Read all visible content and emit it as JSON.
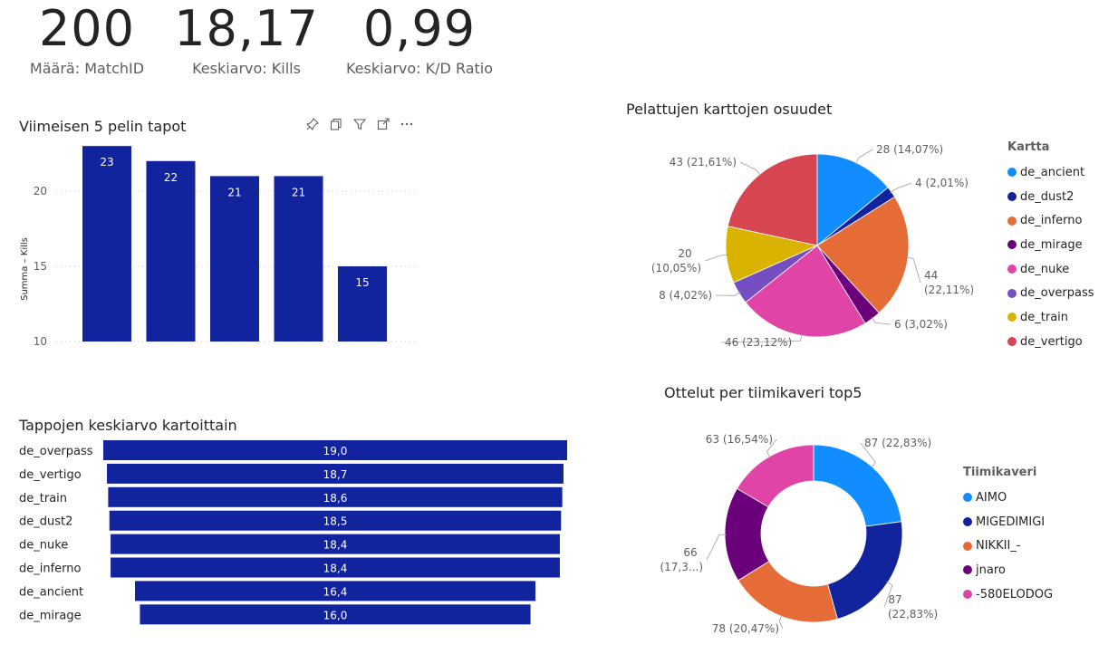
{
  "kpis": [
    {
      "value": "200",
      "label": "Määrä: MatchID"
    },
    {
      "value": "18,17",
      "label": "Keskiarvo: Kills"
    },
    {
      "value": "0,99",
      "label": "Keskiarvo: K/D Ratio"
    }
  ],
  "toolbar_icons": [
    "pin-icon",
    "copy-icon",
    "filter-icon",
    "expand-icon",
    "more-options-icon"
  ],
  "chart_data": [
    {
      "type": "bar",
      "title": "Viimeisen 5 pelin tapot",
      "ylabel": "Summa – Kills",
      "xlabel": "",
      "categories": [
        "",
        "",
        "",
        "",
        ""
      ],
      "values": [
        23,
        22,
        21,
        21,
        15
      ],
      "labels": [
        "23",
        "22",
        "21",
        "21",
        "15"
      ],
      "ylim": [
        10,
        23
      ],
      "yticks": [
        10,
        15,
        20
      ],
      "color": "#12239E",
      "grid": true
    },
    {
      "type": "bar",
      "orientation": "horizontal-funnel",
      "title": "Tappojen keskiarvo kartoittain",
      "categories": [
        "de_overpass",
        "de_vertigo",
        "de_train",
        "de_dust2",
        "de_nuke",
        "de_inferno",
        "de_ancient",
        "de_mirage"
      ],
      "values": [
        19.0,
        18.7,
        18.6,
        18.5,
        18.4,
        18.4,
        16.4,
        16.0
      ],
      "labels": [
        "19,0",
        "18,7",
        "18,6",
        "18,5",
        "18,4",
        "18,4",
        "16,4",
        "16,0"
      ],
      "color": "#12239E"
    },
    {
      "type": "pie",
      "title": "Pelattujen karttojen osuudet",
      "legend_title": "Kartta",
      "legend_position": "right",
      "slices": [
        {
          "name": "de_ancient",
          "value": 28,
          "label": "28 (14,07%)",
          "color": "#118DFF"
        },
        {
          "name": "de_dust2",
          "value": 4,
          "label": "4 (2,01%)",
          "color": "#12239E"
        },
        {
          "name": "de_inferno",
          "value": 44,
          "label": "44 (22,11%)",
          "color": "#E66C37"
        },
        {
          "name": "de_mirage",
          "value": 6,
          "label": "6 (3,02%)",
          "color": "#6B007B"
        },
        {
          "name": "de_nuke",
          "value": 46,
          "label": "46 (23,12%)",
          "color": "#E044A7"
        },
        {
          "name": "de_overpass",
          "value": 8,
          "label": "8 (4,02%)",
          "color": "#744EC2"
        },
        {
          "name": "de_train",
          "value": 20,
          "label": "20 (10,05%)",
          "color": "#D9B300"
        },
        {
          "name": "de_vertigo",
          "value": 43,
          "label": "43 (21,61%)",
          "color": "#D64550"
        }
      ]
    },
    {
      "type": "pie",
      "subtype": "donut",
      "title": "Ottelut per tiimikaveri top5",
      "legend_title": "Tiimikaveri",
      "legend_position": "right",
      "slices": [
        {
          "name": "AIMO",
          "value": 87,
          "label": "87 (22,83%)",
          "color": "#118DFF"
        },
        {
          "name": "MIGEDIMIGI",
          "value": 87,
          "label": "87 (22,83%)",
          "color": "#12239E"
        },
        {
          "name": "NIKKII_-",
          "value": 78,
          "label": "78 (20,47%)",
          "color": "#E66C37"
        },
        {
          "name": "jnaro",
          "value": 66,
          "label": "66 (17,3...)",
          "color": "#6B007B"
        },
        {
          "name": "-580ELODOG",
          "value": 63,
          "label": "63 (16,54%)",
          "color": "#E044A7"
        }
      ]
    }
  ]
}
